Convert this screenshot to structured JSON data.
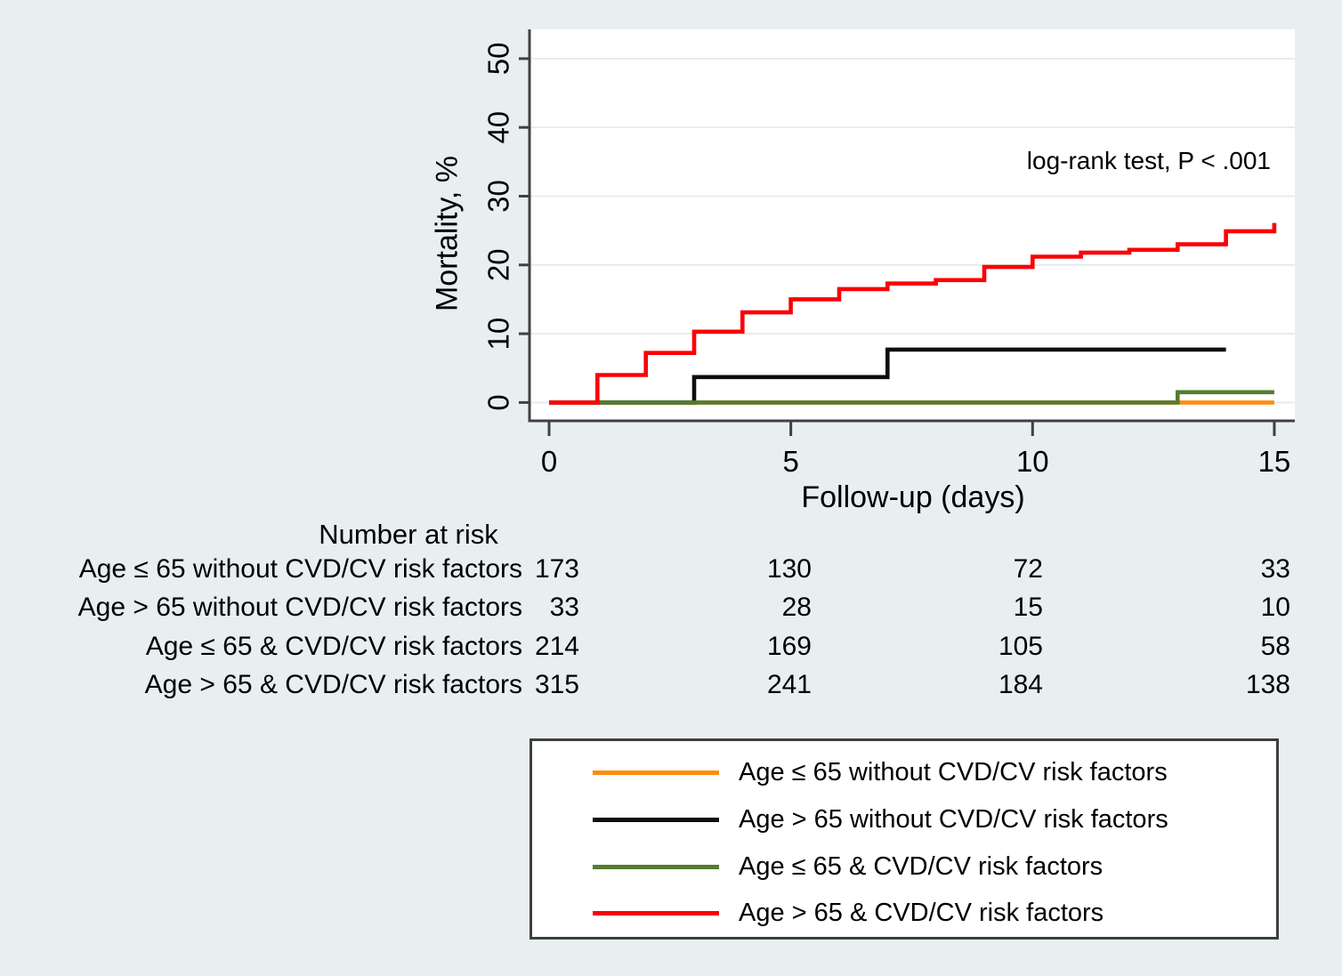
{
  "chart_data": {
    "type": "line",
    "subtype": "step-kaplan-meier-mortality",
    "title": "",
    "xlabel": "Follow-up (days)",
    "ylabel": "Mortality, %",
    "annotation": "log-rank test, P < .001",
    "x_ticks": [
      0,
      5,
      10,
      15
    ],
    "y_ticks": [
      0,
      10,
      20,
      30,
      40,
      50
    ],
    "xlim": [
      0,
      15
    ],
    "ylim": [
      0,
      52
    ],
    "grid": "horizontal",
    "legend_position": "bottom-box",
    "series": [
      {
        "name": "Age ≤ 65 without CVD/CV risk factors",
        "color": "#ff8c0d",
        "step_points": [
          [
            0,
            0
          ],
          [
            15,
            0
          ]
        ]
      },
      {
        "name": "Age > 65 without CVD/CV risk factors",
        "color": "#0d0d0d",
        "step_points": [
          [
            0,
            0
          ],
          [
            3,
            3.7
          ],
          [
            7,
            7.7
          ],
          [
            14,
            7.7
          ]
        ]
      },
      {
        "name": "Age ≤ 65 & CVD/CV risk factors",
        "color": "#567b2f",
        "step_points": [
          [
            0,
            0
          ],
          [
            13,
            1.5
          ],
          [
            15,
            1.5
          ]
        ]
      },
      {
        "name": "Age > 65 & CVD/CV risk factors",
        "color": "#fb0006",
        "step_points": [
          [
            0,
            0
          ],
          [
            1,
            4.0
          ],
          [
            2,
            7.2
          ],
          [
            3,
            10.3
          ],
          [
            4,
            13.1
          ],
          [
            5,
            15.0
          ],
          [
            6,
            16.5
          ],
          [
            7,
            17.3
          ],
          [
            8,
            17.8
          ],
          [
            9,
            19.7
          ],
          [
            10,
            21.2
          ],
          [
            11,
            21.8
          ],
          [
            12,
            22.2
          ],
          [
            13,
            23.0
          ],
          [
            14,
            24.9
          ],
          [
            15,
            26.1
          ]
        ]
      }
    ]
  },
  "risk_table": {
    "title": "Number at risk",
    "time_points": [
      0,
      5,
      10,
      15
    ],
    "rows": [
      {
        "label": "Age ≤ 65 without CVD/CV risk factors",
        "values": [
          173,
          130,
          72,
          33
        ]
      },
      {
        "label": "Age > 65 without CVD/CV risk factors",
        "values": [
          33,
          28,
          15,
          10
        ]
      },
      {
        "label": "Age ≤ 65 & CVD/CV risk factors",
        "values": [
          214,
          169,
          105,
          58
        ]
      },
      {
        "label": "Age > 65 & CVD/CV risk factors",
        "values": [
          315,
          241,
          184,
          138
        ]
      }
    ]
  }
}
